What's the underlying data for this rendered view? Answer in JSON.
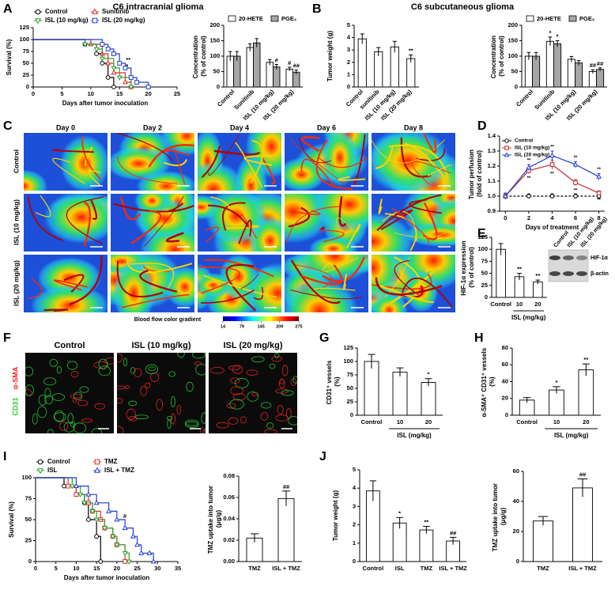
{
  "panel_labels": [
    "A",
    "B",
    "C",
    "D",
    "E",
    "F",
    "G",
    "H",
    "I",
    "J"
  ],
  "headings": [
    "C6 intracranial glioma",
    "C6 subcutaneous glioma"
  ],
  "chart_data": [
    {
      "type": "line",
      "step": true,
      "ylabel": "Survival (%)",
      "xlabel": "Days after tumor inoculation",
      "xlim": [
        0,
        25
      ],
      "xticks": [
        0,
        5,
        10,
        15,
        20,
        25
      ],
      "ylim": [
        0,
        125
      ],
      "yticks": [
        0,
        25,
        50,
        75,
        100,
        125
      ],
      "series": [
        {
          "name": "Control",
          "color": "#000000",
          "marker": "circle",
          "x": [
            0,
            9,
            11,
            12,
            13,
            14
          ],
          "values": [
            100,
            90,
            70,
            50,
            20,
            0
          ]
        },
        {
          "name": "Sunitinib",
          "color": "#e8262a",
          "marker": "triangle-up",
          "x": [
            0,
            10,
            12,
            13,
            14,
            16,
            17
          ],
          "values": [
            100,
            90,
            70,
            50,
            30,
            10,
            0
          ]
        },
        {
          "name": "ISL (10 mg/kg)",
          "color": "#2ca02c",
          "marker": "triangle-down",
          "x": [
            0,
            9,
            11,
            12,
            14,
            15,
            17
          ],
          "values": [
            100,
            90,
            80,
            60,
            40,
            20,
            0
          ]
        },
        {
          "name": "ISL (20 mg/kg)",
          "color": "#1f3fd0",
          "marker": "square",
          "x": [
            0,
            12,
            13,
            14,
            15,
            16,
            17,
            18,
            20
          ],
          "values": [
            100,
            90,
            80,
            70,
            50,
            40,
            20,
            10,
            0
          ],
          "sig": [
            "**",
            "*"
          ]
        }
      ]
    },
    {
      "type": "bar",
      "ylabel": "Concentration (% of control)",
      "categories": [
        "Control",
        "Sunitinib",
        "ISL (10 mg/kg)",
        "ISL (20 mg/kg)"
      ],
      "ylim": [
        0,
        200
      ],
      "yticks": [
        0,
        50,
        100,
        150,
        200
      ],
      "series": [
        {
          "name": "20-HETE",
          "color": "#ffffff",
          "values": [
            100,
            128,
            80,
            58
          ],
          "errors": [
            15,
            12,
            9,
            6
          ],
          "sig": [
            null,
            null,
            null,
            "#"
          ]
        },
        {
          "name": "PGE₂",
          "color": "#a6a6a6",
          "values": [
            100,
            143,
            65,
            48
          ],
          "errors": [
            15,
            14,
            8,
            7
          ],
          "sig": [
            null,
            null,
            "#",
            "##"
          ]
        }
      ]
    },
    {
      "type": "bar",
      "ylabel": "Tumor weight (g)",
      "categories": [
        "Control",
        "sunitinib",
        "ISL (10 mg/kg)",
        "ISL (20 mg/kg)"
      ],
      "values": [
        3.9,
        2.85,
        3.25,
        2.3
      ],
      "errors": [
        0.4,
        0.35,
        0.45,
        0.3
      ],
      "sig": [
        null,
        null,
        null,
        "**"
      ],
      "color": "#ffffff",
      "ylim": [
        0,
        5
      ],
      "yticks": [
        0,
        1,
        2,
        3,
        4,
        5
      ]
    },
    {
      "type": "bar",
      "ylabel": "Concentration (% of control)",
      "categories": [
        "Control",
        "Sunitinib",
        "ISL (10 mg/kg)",
        "ISL (20 mg/kg)"
      ],
      "ylim": [
        0,
        200
      ],
      "yticks": [
        0,
        50,
        100,
        150,
        200
      ],
      "series": [
        {
          "name": "20-HETE",
          "color": "#ffffff",
          "values": [
            100,
            148,
            90,
            50
          ],
          "errors": [
            12,
            14,
            9,
            6
          ],
          "sig": [
            null,
            "*",
            null,
            "##"
          ]
        },
        {
          "name": "PGE₂",
          "color": "#a6a6a6",
          "values": [
            100,
            140,
            78,
            57
          ],
          "errors": [
            12,
            10,
            8,
            5
          ],
          "sig": [
            null,
            "*",
            null,
            "##"
          ]
        }
      ]
    },
    {
      "type": "line",
      "ylabel": "Tumor perfusion (fold of control)",
      "xlabel": "Days of treatment",
      "x": [
        0,
        2,
        4,
        6,
        8
      ],
      "xlim": [
        -0.5,
        8.5
      ],
      "xticks": [
        0,
        2,
        4,
        6,
        8
      ],
      "ylim": [
        0.9,
        1.4
      ],
      "yticks": [
        0.9,
        {
          "value": 1,
          "label": "1.0"
        },
        1.1,
        1.2,
        1.3,
        1.4
      ],
      "series": [
        {
          "name": "Control",
          "color": "#000000",
          "marker": "circle",
          "dash": true,
          "values": [
            1,
            1,
            1,
            1,
            1
          ],
          "errors": [
            0.02,
            0.015,
            0.015,
            0.015,
            0.02
          ]
        },
        {
          "name": "ISL (10 mg/kg)",
          "color": "#c0282d",
          "marker": "square",
          "values": [
            1,
            1.17,
            1.21,
            1.09,
            1.02
          ],
          "errors": [
            0.02,
            0.02,
            0.03,
            0.02,
            0.015
          ],
          "sig": [
            null,
            "**",
            "**",
            "**",
            "**"
          ]
        },
        {
          "name": "ISL (20 mg/kg)",
          "color": "#1f3fd0",
          "marker": "triangle-up",
          "values": [
            1,
            1.19,
            1.27,
            1.21,
            1.13
          ],
          "errors": [
            0.02,
            0.02,
            0.03,
            0.02,
            0.02
          ],
          "sig": [
            null,
            "**",
            "**",
            "**",
            "**"
          ]
        }
      ]
    },
    {
      "type": "bar",
      "ylabel": "HIF-1α expression (% of control)",
      "categories": [
        "Control",
        "10",
        "20"
      ],
      "group_label": "ISL (mg/kg)",
      "values": [
        100,
        43,
        32
      ],
      "errors": [
        12,
        7,
        4
      ],
      "sig": [
        null,
        "**",
        "**"
      ],
      "color": "#ffffff",
      "ylim": [
        0,
        125
      ],
      "yticks": [
        0,
        25,
        50,
        75,
        100,
        125
      ]
    },
    {
      "type": "bar",
      "ylabel": "CD31⁺ vessels (%)",
      "categories": [
        "Control",
        "10",
        "20"
      ],
      "group_label": "ISL (mg/kg)",
      "values": [
        100,
        80,
        61
      ],
      "errors": [
        13,
        8,
        7
      ],
      "sig": [
        null,
        null,
        "*"
      ],
      "color": "#ffffff",
      "ylim": [
        0,
        125
      ],
      "yticks": [
        0,
        25,
        50,
        75,
        100,
        125
      ]
    },
    {
      "type": "bar",
      "ylabel": "α-SMA⁺ CD31⁺ vessels (%)",
      "categories": [
        "Control",
        "10",
        "20"
      ],
      "group_label": "ISL (mg/kg)",
      "values": [
        18,
        30,
        54
      ],
      "errors": [
        3,
        4,
        7
      ],
      "sig": [
        null,
        "*",
        "**"
      ],
      "color": "#ffffff",
      "ylim": [
        0,
        80
      ],
      "yticks": [
        0,
        20,
        40,
        60,
        80
      ]
    },
    {
      "type": "line",
      "step": true,
      "ylabel": "Survival (%)",
      "xlabel": "Days after tumor inoculation",
      "xlim": [
        0,
        35
      ],
      "xticks": [
        0,
        5,
        10,
        15,
        20,
        25,
        30,
        35
      ],
      "ylim": [
        0,
        100
      ],
      "yticks": [
        0,
        25,
        50,
        75,
        100
      ],
      "series": [
        {
          "name": "Control",
          "color": "#000000",
          "marker": "circle",
          "x": [
            0,
            7,
            10,
            12,
            13,
            15,
            16
          ],
          "values": [
            100,
            90,
            80,
            70,
            50,
            30,
            0
          ]
        },
        {
          "name": "TMZ",
          "color": "#e8262a",
          "marker": "square",
          "x": [
            0,
            8,
            10,
            13,
            14,
            16,
            17,
            19,
            20,
            22
          ],
          "values": [
            100,
            90,
            80,
            70,
            60,
            50,
            40,
            30,
            20,
            0
          ]
        },
        {
          "name": "ISL",
          "color": "#2ca02c",
          "marker": "triangle-down",
          "x": [
            0,
            9,
            11,
            12,
            14,
            15,
            17,
            19,
            20,
            22,
            23
          ],
          "values": [
            100,
            90,
            80,
            70,
            60,
            50,
            40,
            30,
            20,
            10,
            0
          ]
        },
        {
          "name": "ISL + TMZ",
          "color": "#1f3fd0",
          "marker": "triangle-up",
          "x": [
            0,
            10,
            13,
            15,
            18,
            20,
            22,
            24,
            25,
            26,
            28,
            29
          ],
          "values": [
            100,
            90,
            80,
            70,
            60,
            50,
            40,
            30,
            20,
            10,
            10,
            0
          ],
          "sig": [
            "#"
          ]
        }
      ]
    },
    {
      "type": "bar",
      "ylabel": "TMZ uptake into tumor (μg/g)",
      "categories": [
        "TMZ",
        "ISL + TMZ"
      ],
      "values": [
        0.022,
        0.059
      ],
      "errors": [
        0.004,
        0.007
      ],
      "sig": [
        null,
        "##"
      ],
      "color": "#ffffff",
      "ylim": [
        0,
        0.08
      ],
      "yticks": [
        {
          "value": 0,
          "label": "0.00"
        },
        0.02,
        0.04,
        0.06,
        0.08
      ]
    },
    {
      "type": "bar",
      "ylabel": "Tumor weight (g)",
      "categories": [
        "Control",
        "ISL",
        "TMZ",
        "ISL + TMZ"
      ],
      "values": [
        3.85,
        2.1,
        1.72,
        1.12
      ],
      "errors": [
        0.55,
        0.3,
        0.2,
        0.2
      ],
      "sig": [
        null,
        "*",
        "**",
        "##"
      ],
      "color": "#ffffff",
      "ylim": [
        0,
        5
      ],
      "yticks": [
        0,
        1,
        2,
        3,
        4,
        5
      ]
    },
    {
      "type": "bar",
      "ylabel": "TMZ uptake into tumor (μg/g)",
      "categories": [
        "TMZ",
        "ISL + TMZ"
      ],
      "values": [
        27,
        49
      ],
      "errors": [
        3,
        6
      ],
      "sig": [
        null,
        "##"
      ],
      "color": "#ffffff",
      "ylim": [
        0,
        60
      ],
      "yticks": [
        0,
        20,
        40,
        60
      ]
    }
  ],
  "perfusion_images": {
    "columns": [
      "Day 0",
      "Day 2",
      "Day 4",
      "Day 6",
      "Day 8"
    ],
    "rows": [
      "Control",
      "ISL (10 mg/kg)",
      "ISL (20 mg/kg)"
    ],
    "colorbar": {
      "label": "Blood flow color gradient",
      "lim": [
        14,
        275
      ],
      "ticks": [
        14,
        79,
        145,
        209,
        275
      ]
    }
  },
  "western_blot": {
    "lanes": [
      "Control",
      "ISL (10 mg/kg)",
      "ISL (20 mg/kg)"
    ],
    "bands": [
      "HIF-1α",
      "β-actin"
    ]
  },
  "immunostaining": {
    "columns": [
      "Control",
      "ISL (10 mg/kg)",
      "ISL (20 mg/kg)"
    ],
    "stains": [
      {
        "name": "CD31",
        "color": "#22cc33"
      },
      {
        "name": "α-SMA",
        "color": "#ee2222"
      }
    ]
  }
}
